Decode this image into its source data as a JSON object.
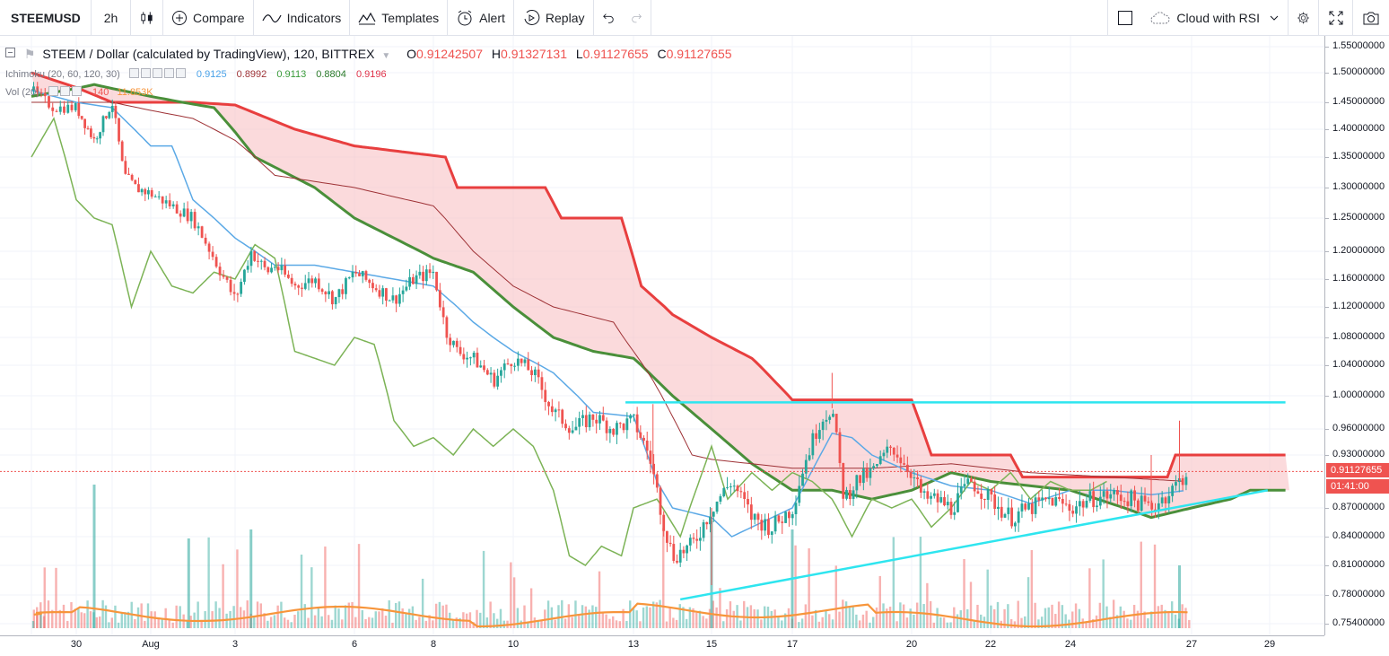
{
  "toolbar": {
    "symbol": "STEEMUSD",
    "interval": "2h",
    "compare_label": "Compare",
    "indicators_label": "Indicators",
    "templates_label": "Templates",
    "alert_label": "Alert",
    "replay_label": "Replay",
    "layout_name": "Cloud with RSI"
  },
  "legend": {
    "title": "STEEM / Dollar (calculated by TradingView), 120, BITTREX",
    "o_key": "O",
    "o_val": "0.91242507",
    "h_key": "H",
    "h_val": "0.91327131",
    "l_key": "L",
    "l_val": "0.91127655",
    "c_key": "C",
    "c_val": "0.91127655"
  },
  "ichimoku": {
    "name": "Ichimoku (20, 60, 120, 30)",
    "values": [
      "0.9125",
      "0.8992",
      "0.9113",
      "0.8804",
      "0.9196"
    ],
    "colors": [
      "#4ca3e8",
      "#9e3236",
      "#3a9b3a",
      "#2a7a2a",
      "#e0334a"
    ]
  },
  "volume": {
    "name": "Vol (20)",
    "v1": "140",
    "v2": "11.853K"
  },
  "price_scale": {
    "ticks": [
      "1.55000000",
      "1.50000000",
      "1.45000000",
      "1.40000000",
      "1.35000000",
      "1.30000000",
      "1.25000000",
      "1.20000000",
      "1.16000000",
      "1.12000000",
      "1.08000000",
      "1.04000000",
      "1.00000000",
      "0.96000000",
      "0.93000000",
      "0.87000000",
      "0.84000000",
      "0.81000000",
      "0.78000000",
      "0.75400000"
    ],
    "last_price": "0.91127655",
    "countdown": "01:41:00"
  },
  "time_scale": {
    "ticks": [
      "30",
      "Aug",
      "3",
      "6",
      "8",
      "10",
      "13",
      "15",
      "17",
      "20",
      "22",
      "24",
      "27",
      "29"
    ]
  },
  "colors": {
    "up": "#26a69a",
    "down": "#ef5350",
    "cloud_bear": "#f8bcbf",
    "span_a": "#4a8f3a",
    "span_b": "#e83f3f",
    "tenkan": "#5ba9e6",
    "kijun": "#9e3236",
    "chikou": "#7cb356",
    "trendline": "#2ee5ef",
    "vol_ma": "#f7953b"
  },
  "chart_data": {
    "type": "candlestick",
    "symbol": "STEEM / Dollar",
    "interval": "120",
    "exchange": "BITTREX",
    "price_axis_ticks": [
      1.55,
      1.5,
      1.45,
      1.4,
      1.35,
      1.3,
      1.25,
      1.2,
      1.16,
      1.12,
      1.08,
      1.04,
      1.0,
      0.96,
      0.93,
      0.87,
      0.84,
      0.81,
      0.78,
      0.754
    ],
    "date_axis_ticks": [
      "30",
      "Aug",
      "3",
      "6",
      "8",
      "10",
      "13",
      "15",
      "17",
      "20",
      "22",
      "24",
      "27",
      "29"
    ],
    "close_series_approx": [
      {
        "x": "29",
        "y": 1.47
      },
      {
        "x": "30",
        "y": 1.44
      },
      {
        "x": "31",
        "y": 1.45
      },
      {
        "x": "Aug",
        "y": 1.29
      },
      {
        "x": "2",
        "y": 1.27
      },
      {
        "x": "3",
        "y": 1.13
      },
      {
        "x": "4",
        "y": 1.2
      },
      {
        "x": "5",
        "y": 1.15
      },
      {
        "x": "6",
        "y": 1.17
      },
      {
        "x": "7",
        "y": 1.13
      },
      {
        "x": "8",
        "y": 1.17
      },
      {
        "x": "9",
        "y": 1.06
      },
      {
        "x": "10",
        "y": 1.05
      },
      {
        "x": "11",
        "y": 1.04
      },
      {
        "x": "12",
        "y": 0.96
      },
      {
        "x": "13",
        "y": 0.97
      },
      {
        "x": "14",
        "y": 0.82
      },
      {
        "x": "15",
        "y": 0.86
      },
      {
        "x": "16",
        "y": 0.85
      },
      {
        "x": "17",
        "y": 0.87
      },
      {
        "x": "18",
        "y": 0.985
      },
      {
        "x": "19",
        "y": 0.88
      },
      {
        "x": "20",
        "y": 0.91
      },
      {
        "x": "21",
        "y": 0.86
      },
      {
        "x": "22",
        "y": 0.9
      },
      {
        "x": "23",
        "y": 0.86
      },
      {
        "x": "24",
        "y": 0.87
      },
      {
        "x": "25",
        "y": 0.88
      },
      {
        "x": "26",
        "y": 0.87
      },
      {
        "x": "27",
        "y": 0.911
      }
    ],
    "last_close": 0.91127655
  }
}
